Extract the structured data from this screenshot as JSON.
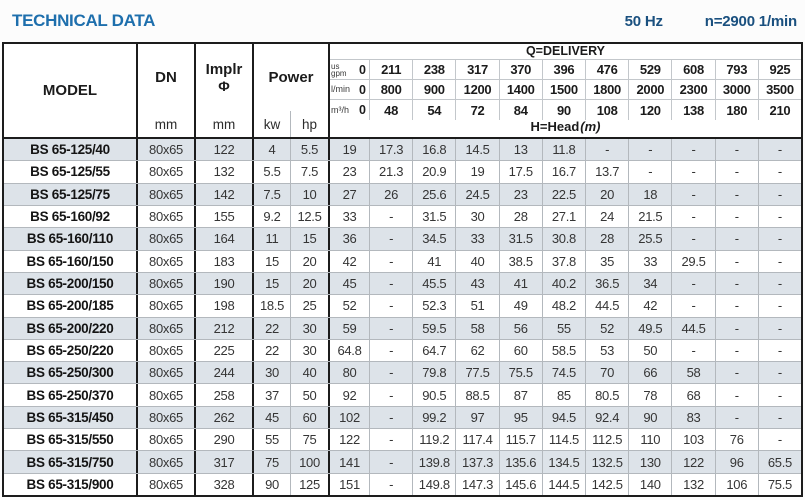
{
  "title": "TECHNICAL DATA",
  "frequency": "50 Hz",
  "speed": "n=2900 1/min",
  "colors": {
    "title_blue": "#1e6fad",
    "header_navy": "#1a507f",
    "row_shade": "#dde3e9",
    "grid_light": "#b3b8bd",
    "grid_heavy": "#1c1c1c"
  },
  "table": {
    "model_header": "MODEL",
    "dn_header": "DN",
    "dn_unit": "mm",
    "implr_line1": "Implr",
    "implr_line2": "Φ",
    "implr_unit": "mm",
    "power_header": "Power",
    "kw_label": "kw",
    "hp_label": "hp",
    "delivery_title": "Q=DELIVERY",
    "head_label": "H=Head",
    "head_unit": "(m)",
    "unit_rows": [
      {
        "label_top": "us",
        "label": "gpm",
        "zero": "0",
        "values": [
          "211",
          "238",
          "317",
          "370",
          "396",
          "476",
          "529",
          "608",
          "793",
          "925"
        ]
      },
      {
        "label": "l/min",
        "zero": "0",
        "values": [
          "800",
          "900",
          "1200",
          "1400",
          "1500",
          "1800",
          "2000",
          "2300",
          "3000",
          "3500"
        ]
      },
      {
        "label": "m³/h",
        "zero": "0",
        "values": [
          "48",
          "54",
          "72",
          "84",
          "90",
          "108",
          "120",
          "138",
          "180",
          "210"
        ]
      }
    ],
    "rows": [
      {
        "model": "BS 65-125/40",
        "dn": "80x65",
        "implr": "122",
        "kw": "4",
        "hp": "5.5",
        "head": [
          "19",
          "17.3",
          "16.8",
          "14.5",
          "13",
          "11.8",
          "-",
          "-",
          "-",
          "-",
          "-"
        ]
      },
      {
        "model": "BS 65-125/55",
        "dn": "80x65",
        "implr": "132",
        "kw": "5.5",
        "hp": "7.5",
        "head": [
          "23",
          "21.3",
          "20.9",
          "19",
          "17.5",
          "16.7",
          "13.7",
          "-",
          "-",
          "-",
          "-"
        ]
      },
      {
        "model": "BS 65-125/75",
        "dn": "80x65",
        "implr": "142",
        "kw": "7.5",
        "hp": "10",
        "head": [
          "27",
          "26",
          "25.6",
          "24.5",
          "23",
          "22.5",
          "20",
          "18",
          "-",
          "-",
          "-"
        ]
      },
      {
        "model": "BS 65-160/92",
        "dn": "80x65",
        "implr": "155",
        "kw": "9.2",
        "hp": "12.5",
        "head": [
          "33",
          "-",
          "31.5",
          "30",
          "28",
          "27.1",
          "24",
          "21.5",
          "-",
          "-",
          "-"
        ]
      },
      {
        "model": "BS 65-160/110",
        "dn": "80x65",
        "implr": "164",
        "kw": "11",
        "hp": "15",
        "head": [
          "36",
          "-",
          "34.5",
          "33",
          "31.5",
          "30.8",
          "28",
          "25.5",
          "-",
          "-",
          "-"
        ]
      },
      {
        "model": "BS 65-160/150",
        "dn": "80x65",
        "implr": "183",
        "kw": "15",
        "hp": "20",
        "head": [
          "42",
          "-",
          "41",
          "40",
          "38.5",
          "37.8",
          "35",
          "33",
          "29.5",
          "-",
          "-"
        ]
      },
      {
        "model": "BS 65-200/150",
        "dn": "80x65",
        "implr": "190",
        "kw": "15",
        "hp": "20",
        "head": [
          "45",
          "-",
          "45.5",
          "43",
          "41",
          "40.2",
          "36.5",
          "34",
          "-",
          "-",
          "-"
        ]
      },
      {
        "model": "BS 65-200/185",
        "dn": "80x65",
        "implr": "198",
        "kw": "18.5",
        "hp": "25",
        "head": [
          "52",
          "-",
          "52.3",
          "51",
          "49",
          "48.2",
          "44.5",
          "42",
          "-",
          "-",
          "-"
        ]
      },
      {
        "model": "BS 65-200/220",
        "dn": "80x65",
        "implr": "212",
        "kw": "22",
        "hp": "30",
        "head": [
          "59",
          "-",
          "59.5",
          "58",
          "56",
          "55",
          "52",
          "49.5",
          "44.5",
          "-",
          "-"
        ]
      },
      {
        "model": "BS 65-250/220",
        "dn": "80x65",
        "implr": "225",
        "kw": "22",
        "hp": "30",
        "head": [
          "64.8",
          "-",
          "64.7",
          "62",
          "60",
          "58.5",
          "53",
          "50",
          "-",
          "-",
          "-"
        ]
      },
      {
        "model": "BS 65-250/300",
        "dn": "80x65",
        "implr": "244",
        "kw": "30",
        "hp": "40",
        "head": [
          "80",
          "-",
          "79.8",
          "77.5",
          "75.5",
          "74.5",
          "70",
          "66",
          "58",
          "-",
          "-"
        ]
      },
      {
        "model": "BS 65-250/370",
        "dn": "80x65",
        "implr": "258",
        "kw": "37",
        "hp": "50",
        "head": [
          "92",
          "-",
          "90.5",
          "88.5",
          "87",
          "85",
          "80.5",
          "78",
          "68",
          "-",
          "-"
        ]
      },
      {
        "model": "BS 65-315/450",
        "dn": "80x65",
        "implr": "262",
        "kw": "45",
        "hp": "60",
        "head": [
          "102",
          "-",
          "99.2",
          "97",
          "95",
          "94.5",
          "92.4",
          "90",
          "83",
          "-",
          "-"
        ]
      },
      {
        "model": "BS 65-315/550",
        "dn": "80x65",
        "implr": "290",
        "kw": "55",
        "hp": "75",
        "head": [
          "122",
          "-",
          "119.2",
          "117.4",
          "115.7",
          "114.5",
          "112.5",
          "110",
          "103",
          "76",
          "-"
        ]
      },
      {
        "model": "BS 65-315/750",
        "dn": "80x65",
        "implr": "317",
        "kw": "75",
        "hp": "100",
        "head": [
          "141",
          "-",
          "139.8",
          "137.3",
          "135.6",
          "134.5",
          "132.5",
          "130",
          "122",
          "96",
          "65.5"
        ]
      },
      {
        "model": "BS 65-315/900",
        "dn": "80x65",
        "implr": "328",
        "kw": "90",
        "hp": "125",
        "head": [
          "151",
          "-",
          "149.8",
          "147.3",
          "145.6",
          "144.5",
          "142.5",
          "140",
          "132",
          "106",
          "75.5"
        ]
      }
    ]
  }
}
